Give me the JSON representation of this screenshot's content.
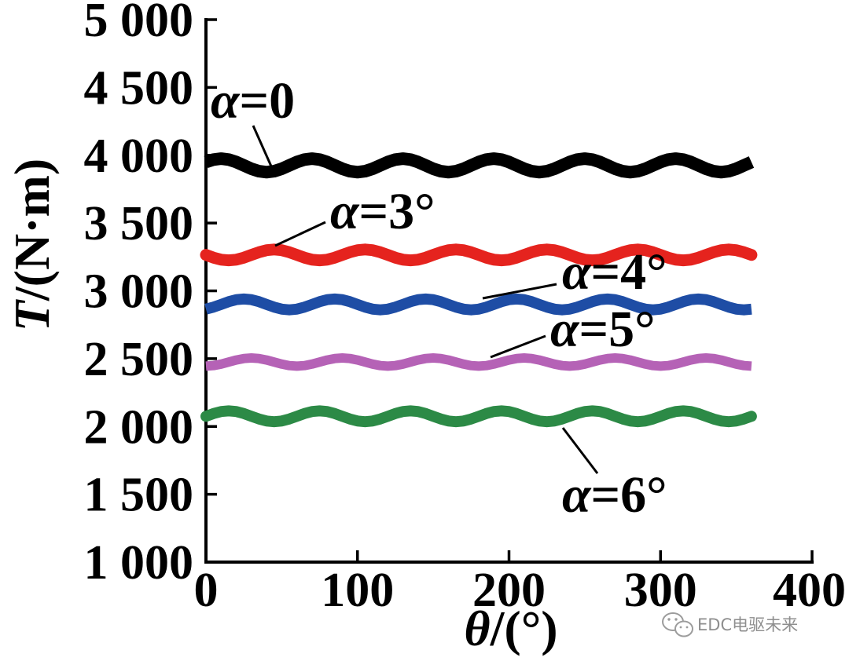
{
  "chart_data": {
    "type": "line",
    "xlabel": "θ/(°)",
    "ylabel": "T/(N·m)",
    "xlim": [
      0,
      400
    ],
    "ylim": [
      1000,
      5000
    ],
    "grid": false,
    "x_ticks": [
      0,
      100,
      200,
      300,
      400
    ],
    "x_tick_labels": [
      "0",
      "100",
      "200",
      "300",
      "400"
    ],
    "y_ticks": [
      1000,
      1500,
      2000,
      2500,
      3000,
      3500,
      4000,
      4500,
      5000
    ],
    "y_tick_labels": [
      "1 000",
      "1 500",
      "2 000",
      "2 500",
      "3 000",
      "3 500",
      "4 000",
      "4 500",
      "5 000"
    ],
    "x": [
      0,
      5,
      10,
      15,
      20,
      25,
      30,
      35,
      40,
      45,
      50,
      55,
      60,
      65,
      70,
      75,
      80,
      85,
      90,
      95,
      100,
      105,
      110,
      115,
      120,
      125,
      130,
      135,
      140,
      145,
      150,
      155,
      160,
      165,
      170,
      175,
      180,
      185,
      190,
      195,
      200,
      205,
      210,
      215,
      220,
      225,
      230,
      235,
      240,
      245,
      250,
      255,
      260,
      265,
      270,
      275,
      280,
      285,
      290,
      295,
      300,
      305,
      310,
      315,
      320,
      325,
      330,
      335,
      340,
      345,
      350,
      355,
      360
    ],
    "series": [
      {
        "name": "α=0",
        "color": "#000000",
        "values": [
          3950,
          3968,
          3975,
          3968,
          3950,
          3925,
          3900,
          3882,
          3875,
          3882,
          3900,
          3925,
          3950,
          3968,
          3975,
          3968,
          3950,
          3925,
          3900,
          3882,
          3875,
          3882,
          3900,
          3925,
          3950,
          3968,
          3975,
          3968,
          3950,
          3925,
          3900,
          3882,
          3875,
          3882,
          3900,
          3925,
          3950,
          3968,
          3975,
          3968,
          3950,
          3925,
          3900,
          3882,
          3875,
          3882,
          3900,
          3925,
          3950,
          3968,
          3975,
          3968,
          3950,
          3925,
          3900,
          3882,
          3875,
          3882,
          3900,
          3925,
          3950,
          3968,
          3975,
          3968,
          3950,
          3925,
          3900,
          3882,
          3875,
          3882,
          3900,
          3925,
          3950
        ]
      },
      {
        "name": "α=3°",
        "color": "#e5231e",
        "values": [
          3265,
          3245,
          3230,
          3225,
          3230,
          3245,
          3265,
          3285,
          3300,
          3305,
          3300,
          3285,
          3265,
          3245,
          3230,
          3225,
          3230,
          3245,
          3265,
          3285,
          3300,
          3305,
          3300,
          3285,
          3265,
          3245,
          3230,
          3225,
          3230,
          3245,
          3265,
          3285,
          3300,
          3305,
          3300,
          3285,
          3265,
          3245,
          3230,
          3225,
          3230,
          3245,
          3265,
          3285,
          3300,
          3305,
          3300,
          3285,
          3265,
          3245,
          3230,
          3225,
          3230,
          3245,
          3265,
          3285,
          3300,
          3305,
          3300,
          3285,
          3265,
          3245,
          3230,
          3225,
          3230,
          3245,
          3265,
          3285,
          3300,
          3305,
          3300,
          3285,
          3265
        ]
      },
      {
        "name": "α=4°",
        "color": "#1e4da5",
        "values": [
          2865,
          2880,
          2900,
          2920,
          2935,
          2940,
          2935,
          2920,
          2900,
          2880,
          2865,
          2860,
          2865,
          2880,
          2900,
          2920,
          2935,
          2940,
          2935,
          2920,
          2900,
          2880,
          2865,
          2860,
          2865,
          2880,
          2900,
          2920,
          2935,
          2940,
          2935,
          2920,
          2900,
          2880,
          2865,
          2860,
          2865,
          2880,
          2900,
          2920,
          2935,
          2940,
          2935,
          2920,
          2900,
          2880,
          2865,
          2860,
          2865,
          2880,
          2900,
          2920,
          2935,
          2940,
          2935,
          2920,
          2900,
          2880,
          2865,
          2860,
          2865,
          2880,
          2900,
          2920,
          2935,
          2940,
          2935,
          2920,
          2900,
          2880,
          2865,
          2860,
          2865
        ]
      },
      {
        "name": "α=5°",
        "color": "#b562b6",
        "values": [
          2445,
          2449,
          2460,
          2475,
          2490,
          2501,
          2505,
          2501,
          2490,
          2475,
          2460,
          2449,
          2445,
          2449,
          2460,
          2475,
          2490,
          2501,
          2505,
          2501,
          2490,
          2475,
          2460,
          2449,
          2445,
          2449,
          2460,
          2475,
          2490,
          2501,
          2505,
          2501,
          2490,
          2475,
          2460,
          2449,
          2445,
          2449,
          2460,
          2475,
          2490,
          2501,
          2505,
          2501,
          2490,
          2475,
          2460,
          2449,
          2445,
          2449,
          2460,
          2475,
          2490,
          2501,
          2505,
          2501,
          2490,
          2475,
          2460,
          2449,
          2445,
          2449,
          2460,
          2475,
          2490,
          2501,
          2505,
          2501,
          2490,
          2475,
          2460,
          2449,
          2445
        ]
      },
      {
        "name": "α=6°",
        "color": "#2c8a46",
        "values": [
          2075,
          2095,
          2110,
          2115,
          2110,
          2095,
          2075,
          2055,
          2040,
          2035,
          2040,
          2055,
          2075,
          2095,
          2110,
          2115,
          2110,
          2095,
          2075,
          2055,
          2040,
          2035,
          2040,
          2055,
          2075,
          2095,
          2110,
          2115,
          2110,
          2095,
          2075,
          2055,
          2040,
          2035,
          2040,
          2055,
          2075,
          2095,
          2110,
          2115,
          2110,
          2095,
          2075,
          2055,
          2040,
          2035,
          2040,
          2055,
          2075,
          2095,
          2110,
          2115,
          2110,
          2095,
          2075,
          2055,
          2040,
          2035,
          2040,
          2055,
          2075,
          2095,
          2110,
          2115,
          2110,
          2095,
          2075,
          2055,
          2040,
          2035,
          2040,
          2055,
          2075
        ]
      }
    ]
  },
  "watermark": {
    "text": "EDC电驱未来"
  }
}
